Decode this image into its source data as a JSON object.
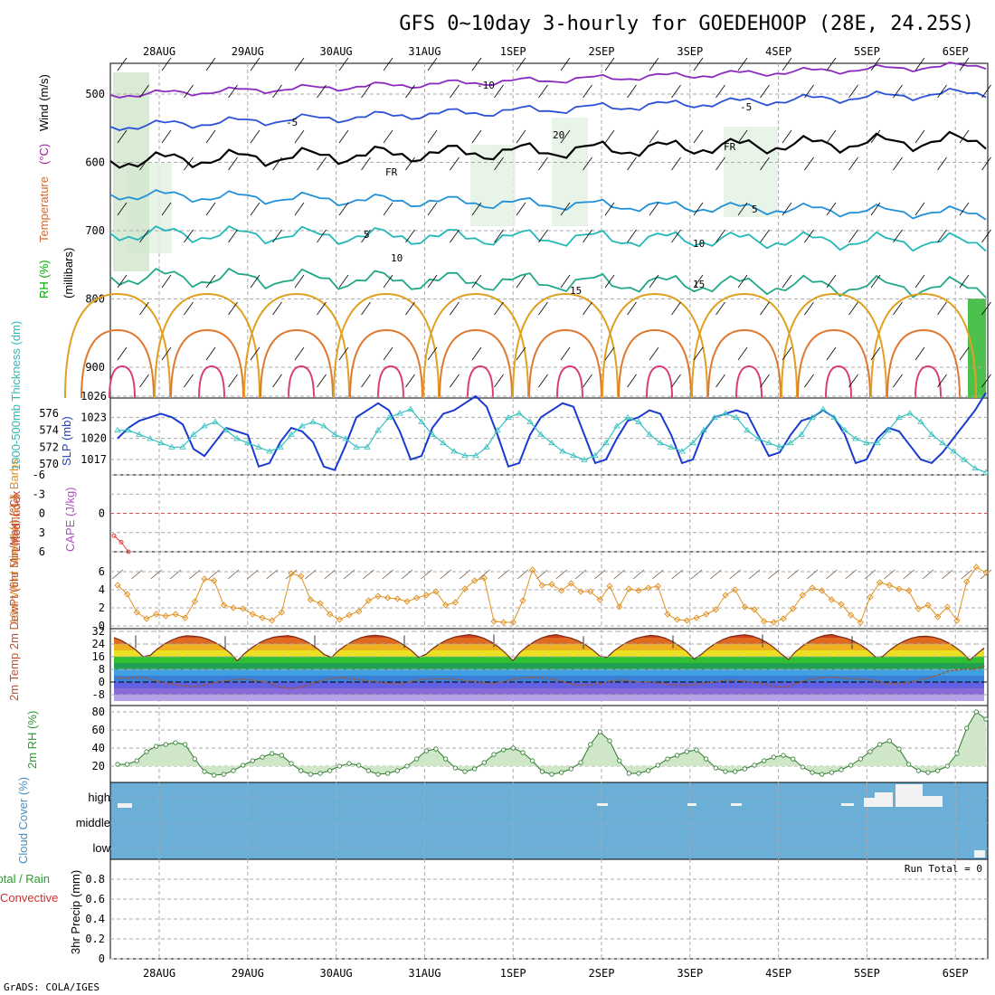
{
  "title": "GFS 0~10day 3-hourly for GOEDEHOOP (28E, 24.25S)",
  "footer": "GrADS: COLA/IGES",
  "run_total": "Run Total = 0",
  "colors": {
    "temp_warm": "#e0a020",
    "temp_hot": "#d83a7a",
    "temp_cool": "#22b8b8",
    "temp_cold": "#2a52d8",
    "freezing": "#000000",
    "slp": "#1a3ad0",
    "thickness": "#30c0c0",
    "wind": "#e09020",
    "rh": "#2a9a2a",
    "cloud": "#6baed6"
  },
  "chart_data": [
    {
      "panel": "upper-air",
      "type": "line",
      "x_ticks": [
        "28AUG",
        "29AUG",
        "30AUG",
        "31AUG",
        "1SEP",
        "2SEP",
        "3SEP",
        "4SEP",
        "5SEP",
        "6SEP"
      ],
      "ylabel_parts": [
        "RH (%)",
        "Temperature",
        "(°C)",
        "Wind (m/s)"
      ],
      "ylabel_axis": "(millibars)",
      "yticks": [
        "500",
        "600",
        "700",
        "800",
        "900"
      ],
      "contour_labels": [
        "-10",
        "-5",
        "-5",
        "FR",
        "FR",
        "5",
        "5",
        "10",
        "10",
        "15",
        "15",
        "20"
      ]
    },
    {
      "panel": "slp-thickness",
      "type": "line",
      "ylabel_left": "1000-500mb Thickness (dm)",
      "ylabel_right": "SLP (mb)",
      "yticks_left": [
        "576",
        "574",
        "572",
        "570"
      ],
      "yticks_right": [
        "1026",
        "1023",
        "1020",
        "1017"
      ],
      "series": [
        {
          "name": "SLP (mb)",
          "values": [
            1020.0,
            1021.5,
            1022.5,
            1023,
            1023.5,
            1023,
            1022,
            1018.5,
            1017.5,
            1019.5,
            1021.5,
            1021,
            1020.5,
            1016,
            1016.5,
            1019.5,
            1021.5,
            1021,
            1019.5,
            1016,
            1015.5,
            1019,
            1023,
            1024,
            1025,
            1024,
            1021,
            1017,
            1017.5,
            1021.5,
            1023.5,
            1024,
            1025,
            1026,
            1024.5,
            1020.5,
            1016,
            1016.5,
            1020.5,
            1023,
            1024,
            1025,
            1024.5,
            1020.5,
            1016.5,
            1017,
            1020,
            1022.5,
            1023,
            1024,
            1023.5,
            1020.5,
            1016.5,
            1017,
            1021,
            1023,
            1023.5,
            1024,
            1023.5,
            1020.5,
            1017.5,
            1018,
            1020.5,
            1022.5,
            1023,
            1024,
            1023,
            1020.5,
            1016.5,
            1017,
            1020,
            1021.5,
            1021,
            1019,
            1017,
            1016.5,
            1018,
            1020,
            1022,
            1024,
            1026.5
          ]
        },
        {
          "name": "Thickness (dm)",
          "values": [
            574,
            574,
            573.5,
            573,
            572.5,
            572,
            572,
            573.5,
            574.5,
            575,
            574,
            573,
            572.5,
            572,
            571.5,
            572,
            573.5,
            574.5,
            575,
            574.5,
            573.5,
            573,
            572,
            572,
            574,
            575.5,
            576,
            576.5,
            575,
            573.5,
            572.5,
            571.5,
            571,
            571,
            572,
            574,
            575.5,
            576,
            575,
            573.5,
            572.5,
            571.5,
            571,
            570.5,
            571,
            572.5,
            574.5,
            575.5,
            575,
            573.5,
            572.5,
            572,
            571.5,
            572.5,
            574,
            575.5,
            576,
            575.5,
            574,
            573,
            572.5,
            572,
            572.5,
            573.5,
            575.5,
            576.5,
            575.5,
            574,
            573,
            572.5,
            572.5,
            574,
            575.5,
            576,
            575,
            573.5,
            572.5,
            571.5,
            570.5,
            569.5,
            569
          ]
        }
      ]
    },
    {
      "panel": "instability",
      "type": "line",
      "ylabel_left": "Lifted Index",
      "ylabel_right": "CAPE (J/kg)",
      "yticks_left": [
        "-6",
        "-3",
        "0",
        "3",
        "6"
      ],
      "yticks_right": [
        "0"
      ],
      "series": [
        {
          "name": "Lifted Index",
          "values": [
            3.5,
            4.5,
            6
          ]
        }
      ]
    },
    {
      "panel": "surface-wind",
      "type": "line",
      "ylabel": "10m Wind Speed (m/s) & Barbs",
      "yticks": [
        "0",
        "2",
        "4",
        "6"
      ],
      "series": [
        {
          "name": "Wind speed (m/s)",
          "values": [
            4.5,
            3.5,
            1.5,
            0.8,
            1.3,
            1.1,
            1.3,
            0.9,
            2.7,
            5.2,
            5.0,
            2.3,
            2.0,
            1.9,
            1.3,
            0.9,
            0.6,
            1.5,
            5.8,
            5.5,
            2.9,
            2.5,
            1.3,
            0.7,
            1.2,
            1.6,
            2.8,
            3.3,
            3.1,
            3.0,
            2.7,
            3.1,
            3.4,
            3.8,
            2.3,
            2.6,
            4.1,
            5.0,
            5.3,
            0.5,
            0.4,
            0.4,
            2.8,
            6.2,
            4.5,
            4.6,
            3.9,
            4.7,
            3.8,
            3.8,
            2.9,
            4.4,
            2.1,
            4.1,
            3.9,
            4.2,
            4.4,
            1.3,
            0.7,
            0.6,
            0.9,
            1.3,
            1.8,
            3.4,
            4.0,
            2.1,
            1.8,
            0.5,
            0.4,
            0.8,
            1.9,
            3.4,
            4.2,
            3.9,
            2.9,
            2.4,
            1.2,
            0.4,
            3.2,
            4.8,
            4.5,
            4.1,
            3.9,
            1.9,
            2.3,
            1.0,
            2.1,
            0.6,
            4.9,
            6.5,
            5.9
          ]
        }
      ]
    },
    {
      "panel": "surface-temp",
      "type": "line",
      "ylabel": "2m Temp 2m DewPt (6hr Min/Max) (°C)",
      "yticks": [
        "32",
        "24",
        "16",
        "8",
        "0",
        "-8"
      ],
      "days": [
        {
          "max": 29.5,
          "min": 13.5
        },
        {
          "max": 29.0,
          "min": 13.0
        },
        {
          "max": 29.5,
          "min": 13.5
        },
        {
          "max": 29.5,
          "min": 13.5
        },
        {
          "max": 30.0,
          "min": 13.0
        },
        {
          "max": 29.0,
          "min": 13.0
        },
        {
          "max": 29.5,
          "min": 13.0
        },
        {
          "max": 30.0,
          "min": 13.0
        },
        {
          "max": 29.0,
          "min": 13.0
        }
      ],
      "dewpoint": [
        2.5,
        2.5,
        3,
        1,
        -1,
        -2,
        -3,
        -2,
        0,
        1,
        2,
        1,
        0,
        -3,
        -4,
        -3,
        0,
        2,
        3,
        2,
        1,
        0,
        -1,
        -1,
        1,
        2,
        2,
        2,
        1,
        0,
        -1,
        0,
        2,
        3,
        3,
        2,
        0,
        -2,
        -2,
        -1,
        1,
        1,
        0,
        0,
        -1,
        -2,
        -2,
        -1,
        0,
        1,
        1,
        0,
        -1,
        -3,
        -3,
        0,
        2,
        3,
        3,
        2,
        2,
        1,
        -1,
        -1,
        0,
        2,
        4,
        7,
        8,
        8,
        10.5
      ]
    },
    {
      "panel": "surface-rh",
      "type": "line",
      "ylabel": "2m RH (%)",
      "yticks": [
        "80",
        "60",
        "40",
        "20"
      ],
      "series": [
        {
          "name": "2m RH (%)",
          "values": [
            22,
            22,
            26,
            36,
            42,
            44,
            46,
            44,
            28,
            14,
            10,
            11,
            15,
            21,
            26,
            30,
            34,
            32,
            23,
            15,
            11,
            12,
            15,
            20,
            23,
            21,
            15,
            11,
            12,
            15,
            20,
            28,
            37,
            39,
            28,
            18,
            14,
            17,
            24,
            33,
            38,
            40,
            35,
            26,
            14,
            11,
            13,
            17,
            24,
            44,
            58,
            48,
            26,
            12,
            12,
            15,
            21,
            28,
            32,
            36,
            38,
            28,
            18,
            14,
            14,
            17,
            21,
            26,
            30,
            32,
            28,
            19,
            13,
            11,
            13,
            16,
            21,
            28,
            36,
            44,
            48,
            39,
            22,
            15,
            13,
            15,
            20,
            34,
            62,
            80,
            72
          ]
        }
      ]
    },
    {
      "panel": "cloud-cover",
      "type": "heatmap",
      "ylabel": "Cloud Cover (%)",
      "yticks": [
        "high",
        "middle",
        "low"
      ]
    },
    {
      "panel": "precip",
      "type": "bar",
      "ylabel_left": "Total / Rain",
      "ylabel_left2": "Convective",
      "ylabel": "3hr Precip (mm)",
      "yticks": [
        "0.8",
        "0.6",
        "0.4",
        "0.2",
        "0"
      ],
      "ylim": [
        0,
        1
      ],
      "values": []
    }
  ]
}
